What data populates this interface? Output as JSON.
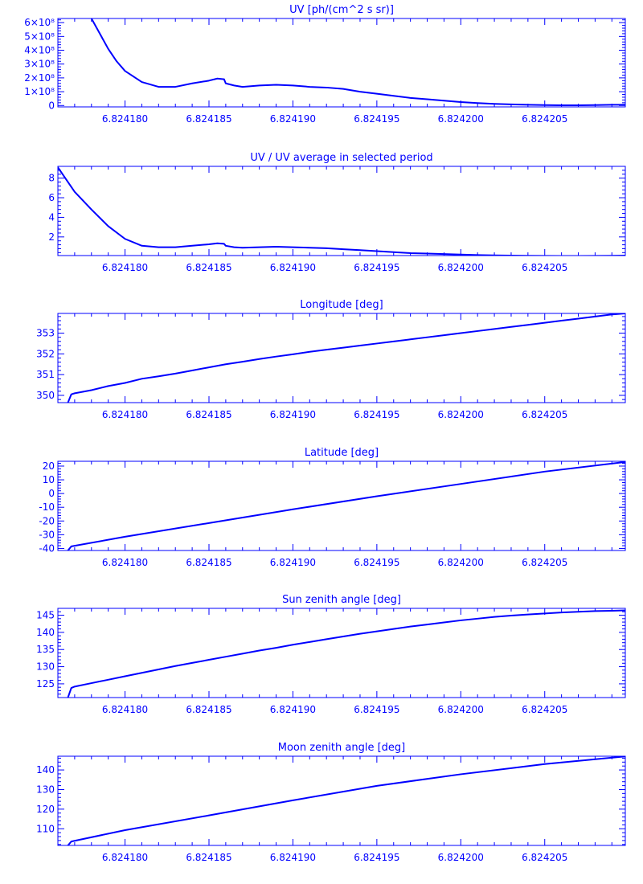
{
  "page": {
    "line_color": "#0000ff",
    "background": "#ffffff"
  },
  "chart_data": [
    {
      "type": "line",
      "title": "UV [ph/(cm^2 s sr)]",
      "xlim": [
        6.824176,
        6.8242098
      ],
      "ylim": [
        -0.1,
        6.3
      ],
      "x_ticks": [
        6.82418,
        6.824185,
        6.82419,
        6.824195,
        6.8242,
        6.824205
      ],
      "x_tick_labels": [
        "6.824180",
        "6.824185",
        "6.824190",
        "6.824195",
        "6.824200",
        "6.824205"
      ],
      "y_ticks": [
        0,
        1,
        2,
        3,
        4,
        5,
        6
      ],
      "y_tick_labels": [
        "0",
        "1×10⁸",
        "2×10⁸",
        "3×10⁸",
        "4×10⁸",
        "5×10⁸",
        "6×10⁸"
      ],
      "y_units": "×10⁸",
      "x": [
        6.824178,
        6.8241785,
        6.824179,
        6.8241795,
        6.82418,
        6.824181,
        6.824182,
        6.824183,
        6.824184,
        6.824185,
        6.8241855,
        6.8241859,
        6.824186,
        6.8241865,
        6.824187,
        6.824188,
        6.824189,
        6.82419,
        6.824191,
        6.824192,
        6.824193,
        6.824194,
        6.824195,
        6.824196,
        6.824197,
        6.824198,
        6.824199,
        6.8242,
        6.824201,
        6.824202,
        6.824203,
        6.824204,
        6.824205,
        6.824206,
        6.824207,
        6.824208,
        6.824209,
        6.8242098
      ],
      "values": [
        6.3,
        5.2,
        4.1,
        3.2,
        2.5,
        1.7,
        1.35,
        1.35,
        1.6,
        1.8,
        1.95,
        1.9,
        1.6,
        1.45,
        1.35,
        1.45,
        1.5,
        1.45,
        1.35,
        1.3,
        1.2,
        1.0,
        0.85,
        0.7,
        0.55,
        0.45,
        0.35,
        0.25,
        0.18,
        0.12,
        0.08,
        0.05,
        0.03,
        0.02,
        0.02,
        0.03,
        0.05,
        0.05
      ]
    },
    {
      "type": "line",
      "title": "UV / UV average in selected period",
      "xlim": [
        6.824176,
        6.8242098
      ],
      "ylim": [
        0.1,
        9.2
      ],
      "x_ticks": [
        6.82418,
        6.824185,
        6.82419,
        6.824195,
        6.8242,
        6.824205
      ],
      "x_tick_labels": [
        "6.824180",
        "6.824185",
        "6.824190",
        "6.824195",
        "6.824200",
        "6.824205"
      ],
      "y_ticks": [
        2,
        4,
        6,
        8
      ],
      "y_tick_labels": [
        "2",
        "4",
        "6",
        "8"
      ],
      "x": [
        6.824176,
        6.824177,
        6.824178,
        6.824179,
        6.82418,
        6.824181,
        6.824182,
        6.824183,
        6.824184,
        6.824185,
        6.8241855,
        6.8241859,
        6.824186,
        6.8241865,
        6.824187,
        6.824188,
        6.824189,
        6.82419,
        6.824191,
        6.824192,
        6.824193,
        6.824194,
        6.824195,
        6.824196,
        6.824197,
        6.824198,
        6.824199,
        6.8242,
        6.824201,
        6.824202,
        6.824203,
        6.824204,
        6.824205,
        6.824206,
        6.824207,
        6.824208,
        6.824209,
        6.8242098
      ],
      "values": [
        9.1,
        6.6,
        4.8,
        3.1,
        1.8,
        1.1,
        0.95,
        0.95,
        1.1,
        1.25,
        1.35,
        1.3,
        1.1,
        0.95,
        0.9,
        0.95,
        1.0,
        0.95,
        0.9,
        0.85,
        0.75,
        0.65,
        0.55,
        0.45,
        0.35,
        0.3,
        0.25,
        0.2,
        0.15,
        0.12,
        0.1,
        0.08,
        0.07,
        0.06,
        0.06,
        0.07,
        0.08,
        0.1
      ]
    },
    {
      "type": "line",
      "title": "Longitude [deg]",
      "xlim": [
        6.824176,
        6.8242098
      ],
      "ylim": [
        349.65,
        353.95
      ],
      "x_ticks": [
        6.82418,
        6.824185,
        6.82419,
        6.824195,
        6.8242,
        6.824205
      ],
      "x_tick_labels": [
        "6.824180",
        "6.824185",
        "6.824190",
        "6.824195",
        "6.824200",
        "6.824205"
      ],
      "y_ticks": [
        350,
        351,
        352,
        353
      ],
      "y_tick_labels": [
        "350",
        "351",
        "352",
        "353"
      ],
      "x": [
        6.8241766,
        6.8241768,
        6.824177,
        6.824178,
        6.824179,
        6.82418,
        6.824181,
        6.824182,
        6.824183,
        6.824184,
        6.824185,
        6.824186,
        6.824187,
        6.824188,
        6.824189,
        6.82419,
        6.824191,
        6.824192,
        6.824193,
        6.824194,
        6.824195,
        6.824196,
        6.824197,
        6.824198,
        6.824199,
        6.8242,
        6.824201,
        6.824202,
        6.824203,
        6.824204,
        6.824205,
        6.824206,
        6.824207,
        6.824208,
        6.824209,
        6.8242098
      ],
      "values": [
        349.65,
        350.05,
        350.1,
        350.25,
        350.45,
        350.6,
        350.8,
        350.92,
        351.05,
        351.2,
        351.35,
        351.5,
        351.62,
        351.75,
        351.87,
        351.98,
        352.1,
        352.2,
        352.3,
        352.4,
        352.5,
        352.6,
        352.7,
        352.8,
        352.9,
        353.0,
        353.1,
        353.2,
        353.3,
        353.4,
        353.5,
        353.6,
        353.7,
        353.8,
        353.9,
        353.95
      ]
    },
    {
      "type": "line",
      "title": "Latitude [deg]",
      "xlim": [
        6.824176,
        6.8242098
      ],
      "ylim": [
        -41.5,
        23.5
      ],
      "x_ticks": [
        6.82418,
        6.824185,
        6.82419,
        6.824195,
        6.8242,
        6.824205
      ],
      "x_tick_labels": [
        "6.824180",
        "6.824185",
        "6.824190",
        "6.824195",
        "6.824200",
        "6.824205"
      ],
      "y_ticks": [
        -40,
        -30,
        -20,
        -10,
        0,
        10,
        20
      ],
      "y_tick_labels": [
        "-40",
        "-30",
        "-20",
        "-10",
        "0",
        "10",
        "20"
      ],
      "x": [
        6.8241766,
        6.8241768,
        6.82418,
        6.824185,
        6.82419,
        6.824195,
        6.8242,
        6.824205,
        6.8242098
      ],
      "values": [
        -41.5,
        -38.5,
        -31.5,
        -21.5,
        -11.5,
        -2.0,
        7.0,
        16.0,
        23.0
      ]
    },
    {
      "type": "line",
      "title": "Sun zenith angle [deg]",
      "xlim": [
        6.824176,
        6.8242098
      ],
      "ylim": [
        121.0,
        147.0
      ],
      "x_ticks": [
        6.82418,
        6.824185,
        6.82419,
        6.824195,
        6.8242,
        6.824205
      ],
      "x_tick_labels": [
        "6.824180",
        "6.824185",
        "6.824190",
        "6.824195",
        "6.824200",
        "6.824205"
      ],
      "y_ticks": [
        125,
        130,
        135,
        140,
        145
      ],
      "y_tick_labels": [
        "125",
        "130",
        "135",
        "140",
        "145"
      ],
      "x": [
        6.8241766,
        6.8241768,
        6.824177,
        6.824178,
        6.824179,
        6.82418,
        6.824181,
        6.824182,
        6.824183,
        6.824184,
        6.824185,
        6.824186,
        6.824187,
        6.824188,
        6.824189,
        6.82419,
        6.824191,
        6.824192,
        6.824193,
        6.824194,
        6.824195,
        6.824196,
        6.824197,
        6.824198,
        6.824199,
        6.8242,
        6.824201,
        6.824202,
        6.824203,
        6.824204,
        6.824205,
        6.824206,
        6.824207,
        6.824208,
        6.824209,
        6.8242098
      ],
      "values": [
        121.0,
        123.8,
        124.2,
        125.2,
        126.2,
        127.2,
        128.2,
        129.2,
        130.2,
        131.1,
        132.0,
        132.9,
        133.8,
        134.7,
        135.5,
        136.4,
        137.2,
        138.0,
        138.8,
        139.6,
        140.3,
        141.0,
        141.7,
        142.3,
        142.9,
        143.5,
        144.0,
        144.5,
        144.9,
        145.2,
        145.5,
        145.8,
        146.0,
        146.2,
        146.3,
        146.4
      ]
    },
    {
      "type": "line",
      "title": "Moon zenith angle [deg]",
      "xlim": [
        6.824176,
        6.8242098
      ],
      "ylim": [
        101.5,
        147.0
      ],
      "x_ticks": [
        6.82418,
        6.824185,
        6.82419,
        6.824195,
        6.8242,
        6.824205
      ],
      "x_tick_labels": [
        "6.824180",
        "6.824185",
        "6.824190",
        "6.824195",
        "6.824200",
        "6.824205"
      ],
      "y_ticks": [
        110,
        120,
        130,
        140
      ],
      "y_tick_labels": [
        "110",
        "120",
        "130",
        "140"
      ],
      "x": [
        6.8241766,
        6.8241768,
        6.82418,
        6.824185,
        6.82419,
        6.824195,
        6.8242,
        6.824205,
        6.8242098
      ],
      "values": [
        101.5,
        103.5,
        109.3,
        116.8,
        124.5,
        131.9,
        137.8,
        143.0,
        146.9
      ]
    }
  ]
}
